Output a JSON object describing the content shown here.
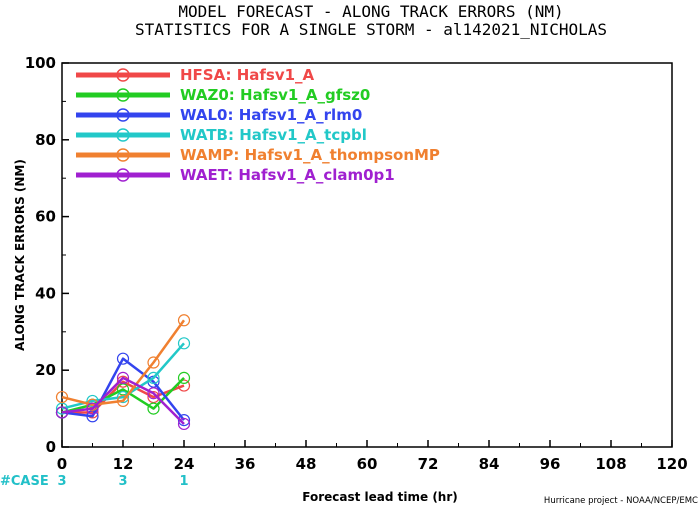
{
  "chart_data": {
    "type": "line",
    "title": "MODEL FORECAST - ALONG TRACK ERRORS (NM)",
    "subtitle": "STATISTICS FOR A SINGLE STORM - al142021_NICHOLAS",
    "xlabel": "Forecast lead time (hr)",
    "ylabel": "ALONG TRACK ERRORS (NM)",
    "xlim": [
      0,
      120
    ],
    "ylim": [
      0,
      100
    ],
    "x_ticks": [
      "0",
      "12",
      "24",
      "36",
      "48",
      "60",
      "72",
      "84",
      "96",
      "108",
      "120"
    ],
    "y_ticks": [
      "0",
      "20",
      "40",
      "60",
      "80",
      "100"
    ],
    "grid": false,
    "legend_position": "top-left",
    "x": [
      0,
      6,
      12,
      18,
      24
    ],
    "series": [
      {
        "name": "HFSA: Hafsv1_A",
        "color": "#f04848",
        "values": [
          9,
          9,
          17,
          13,
          16
        ]
      },
      {
        "name": "WAZ0: Hafsv1_A_gfsz0",
        "color": "#22cc22",
        "values": [
          9,
          11,
          15,
          10,
          18
        ]
      },
      {
        "name": "WAL0: Hafsv1_A_rlm0",
        "color": "#3344ee",
        "values": [
          9,
          8,
          23,
          17,
          7
        ]
      },
      {
        "name": "WATB: Hafsv1_A_tcpbl",
        "color": "#22c8c8",
        "values": [
          10,
          12,
          13,
          18,
          27
        ]
      },
      {
        "name": "WAMP: Hafsv1_A_thompsonMP",
        "color": "#f08030",
        "values": [
          13,
          11,
          12,
          22,
          33
        ]
      },
      {
        "name": "WAET: Hafsv1_A_clam0p1",
        "color": "#a020d0",
        "values": [
          9,
          10,
          18,
          14,
          6
        ]
      }
    ],
    "case_label": "#CASE",
    "case_counts": [
      {
        "x": 0,
        "label": "3"
      },
      {
        "x": 12,
        "label": "3"
      },
      {
        "x": 24,
        "label": "1"
      }
    ],
    "credit": "Hurricane project - NOAA/NCEP/EMC"
  }
}
